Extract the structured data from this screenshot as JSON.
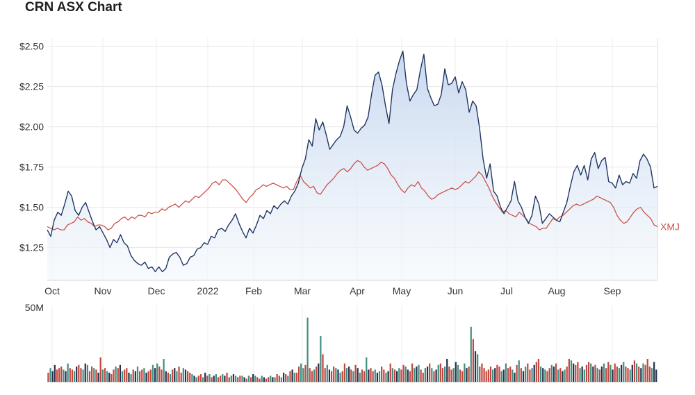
{
  "page": {
    "title": "CRN ASX Chart"
  },
  "chart_data": {
    "type": "line",
    "title": "CRN ASX Chart",
    "xlabel": "",
    "ylabel": "",
    "ylim": [
      1.05,
      2.55
    ],
    "y_ticks": [
      {
        "value": 1.25,
        "label": "$1.25"
      },
      {
        "value": 1.5,
        "label": "$1.50"
      },
      {
        "value": 1.75,
        "label": "$1.75"
      },
      {
        "value": 2.0,
        "label": "$2.00"
      },
      {
        "value": 2.25,
        "label": "$2.25"
      },
      {
        "value": 2.5,
        "label": "$2.50"
      }
    ],
    "x_ticks": [
      "Oct",
      "Nov",
      "Dec",
      "2022",
      "Feb",
      "Mar",
      "Apr",
      "May",
      "Jun",
      "Jul",
      "Aug",
      "Sep"
    ],
    "grid": true,
    "colors": {
      "crn": "#1f3563",
      "xmj": "#c9544c",
      "fill_top": "#c6d7ee",
      "fill_bottom": "#f3f7fc",
      "vol_up": "#3f8f80",
      "vol_down": "#c3473f",
      "vol_neutral": "#25324d"
    },
    "series": [
      {
        "name": "",
        "key": "crn",
        "values": [
          1.36,
          1.32,
          1.42,
          1.47,
          1.45,
          1.52,
          1.6,
          1.57,
          1.48,
          1.45,
          1.5,
          1.53,
          1.47,
          1.41,
          1.36,
          1.38,
          1.34,
          1.3,
          1.25,
          1.3,
          1.28,
          1.33,
          1.28,
          1.26,
          1.2,
          1.17,
          1.15,
          1.14,
          1.16,
          1.12,
          1.13,
          1.1,
          1.13,
          1.1,
          1.12,
          1.19,
          1.21,
          1.22,
          1.19,
          1.14,
          1.15,
          1.19,
          1.2,
          1.24,
          1.25,
          1.28,
          1.27,
          1.32,
          1.31,
          1.36,
          1.37,
          1.35,
          1.39,
          1.42,
          1.46,
          1.4,
          1.35,
          1.31,
          1.37,
          1.34,
          1.39,
          1.45,
          1.43,
          1.48,
          1.46,
          1.51,
          1.49,
          1.52,
          1.54,
          1.52,
          1.57,
          1.6,
          1.65,
          1.74,
          1.8,
          1.92,
          1.88,
          2.05,
          1.98,
          2.03,
          1.95,
          1.86,
          1.89,
          1.92,
          1.94,
          2.0,
          2.13,
          2.06,
          1.98,
          1.96,
          1.99,
          2.01,
          2.06,
          2.2,
          2.32,
          2.34,
          2.26,
          2.13,
          2.02,
          2.23,
          2.33,
          2.41,
          2.47,
          2.27,
          2.16,
          2.2,
          2.23,
          2.35,
          2.45,
          2.24,
          2.18,
          2.13,
          2.14,
          2.2,
          2.36,
          2.26,
          2.27,
          2.31,
          2.21,
          2.28,
          2.23,
          2.09,
          2.16,
          2.13,
          1.99,
          1.8,
          1.68,
          1.77,
          1.6,
          1.57,
          1.5,
          1.46,
          1.5,
          1.54,
          1.66,
          1.54,
          1.5,
          1.44,
          1.4,
          1.45,
          1.57,
          1.52,
          1.4,
          1.43,
          1.46,
          1.44,
          1.42,
          1.41,
          1.47,
          1.53,
          1.63,
          1.72,
          1.76,
          1.7,
          1.76,
          1.67,
          1.8,
          1.84,
          1.74,
          1.79,
          1.81,
          1.66,
          1.65,
          1.62,
          1.7,
          1.64,
          1.66,
          1.65,
          1.71,
          1.68,
          1.79,
          1.83,
          1.8,
          1.75,
          1.62,
          1.63
        ]
      },
      {
        "name": "XMJ",
        "key": "xmj",
        "values": [
          1.38,
          1.37,
          1.36,
          1.37,
          1.36,
          1.36,
          1.39,
          1.4,
          1.41,
          1.44,
          1.42,
          1.43,
          1.41,
          1.4,
          1.38,
          1.39,
          1.39,
          1.38,
          1.36,
          1.37,
          1.4,
          1.41,
          1.43,
          1.44,
          1.42,
          1.44,
          1.43,
          1.45,
          1.45,
          1.44,
          1.47,
          1.46,
          1.47,
          1.47,
          1.49,
          1.48,
          1.5,
          1.51,
          1.52,
          1.5,
          1.52,
          1.54,
          1.53,
          1.55,
          1.57,
          1.56,
          1.58,
          1.6,
          1.62,
          1.65,
          1.66,
          1.64,
          1.67,
          1.67,
          1.65,
          1.63,
          1.61,
          1.58,
          1.55,
          1.53,
          1.56,
          1.58,
          1.61,
          1.62,
          1.64,
          1.63,
          1.64,
          1.65,
          1.64,
          1.63,
          1.62,
          1.63,
          1.61,
          1.61,
          1.66,
          1.7,
          1.66,
          1.64,
          1.62,
          1.63,
          1.59,
          1.58,
          1.61,
          1.64,
          1.66,
          1.68,
          1.71,
          1.73,
          1.74,
          1.72,
          1.74,
          1.77,
          1.79,
          1.78,
          1.75,
          1.73,
          1.74,
          1.75,
          1.76,
          1.78,
          1.77,
          1.74,
          1.7,
          1.68,
          1.64,
          1.61,
          1.59,
          1.62,
          1.64,
          1.63,
          1.66,
          1.62,
          1.6,
          1.57,
          1.55,
          1.56,
          1.58,
          1.59,
          1.6,
          1.61,
          1.62,
          1.61,
          1.62,
          1.64,
          1.66,
          1.65,
          1.67,
          1.69,
          1.72,
          1.7,
          1.66,
          1.62,
          1.57,
          1.53,
          1.5,
          1.47,
          1.48,
          1.46,
          1.45,
          1.44,
          1.47,
          1.45,
          1.43,
          1.4,
          1.39,
          1.38,
          1.36,
          1.37,
          1.37,
          1.4,
          1.43,
          1.42,
          1.44,
          1.45,
          1.47,
          1.49,
          1.51,
          1.52,
          1.51,
          1.52,
          1.53,
          1.54,
          1.55,
          1.57,
          1.56,
          1.55,
          1.54,
          1.53,
          1.5,
          1.45,
          1.42,
          1.4,
          1.41,
          1.44,
          1.47,
          1.49,
          1.5,
          1.47,
          1.45,
          1.43,
          1.39,
          1.38
        ]
      }
    ],
    "volume": {
      "ymax": 50,
      "tick_label": "50M",
      "values": [
        6,
        9,
        7,
        11,
        8,
        9,
        10,
        8,
        7,
        12,
        9,
        8,
        7,
        10,
        11,
        9,
        8,
        12,
        11,
        7,
        10,
        9,
        8,
        6,
        16,
        8,
        9,
        7,
        6,
        5,
        8,
        10,
        9,
        11,
        7,
        8,
        9,
        6,
        5,
        8,
        7,
        10,
        7,
        8,
        9,
        6,
        7,
        8,
        11,
        9,
        12,
        10,
        8,
        15,
        7,
        6,
        5,
        8,
        9,
        7,
        10,
        6,
        9,
        8,
        7,
        6,
        5,
        4,
        3,
        4,
        5,
        3,
        6,
        4,
        5,
        3,
        4,
        5,
        3,
        4,
        5,
        4,
        6,
        3,
        4,
        5,
        4,
        3,
        4,
        4,
        3,
        2,
        4,
        3,
        5,
        4,
        3,
        2,
        4,
        3,
        2,
        3,
        4,
        3,
        3,
        5,
        4,
        3,
        6,
        5,
        4,
        7,
        8,
        6,
        6,
        10,
        12,
        9,
        11,
        42,
        9,
        7,
        8,
        10,
        12,
        30,
        18,
        9,
        11,
        8,
        7,
        10,
        9,
        8,
        6,
        7,
        12,
        9,
        10,
        8,
        7,
        11,
        9,
        6,
        8,
        7,
        16,
        8,
        9,
        7,
        8,
        6,
        7,
        10,
        8,
        6,
        7,
        12,
        9,
        8,
        7,
        9,
        8,
        11,
        10,
        8,
        7,
        12,
        9,
        10,
        11,
        8,
        6,
        9,
        10,
        12,
        9,
        7,
        8,
        11,
        12,
        9,
        10,
        15,
        10,
        8,
        9,
        13,
        11,
        8,
        7,
        12,
        9,
        10,
        36,
        28,
        20,
        18,
        10,
        12,
        9,
        7,
        8,
        10,
        8,
        9,
        11,
        10,
        7,
        8,
        12,
        9,
        10,
        8,
        6,
        11,
        14,
        9,
        7,
        10,
        12,
        8,
        9,
        11,
        13,
        15,
        10,
        9,
        8,
        7,
        9,
        11,
        10,
        12,
        8,
        9,
        7,
        8,
        10,
        15,
        14,
        12,
        11,
        13,
        9,
        10,
        8,
        11,
        13,
        12,
        10,
        11,
        9,
        8,
        10,
        12,
        9,
        13,
        11,
        8,
        12,
        10,
        9,
        11,
        13,
        10,
        9,
        8,
        11,
        14,
        12,
        10,
        9,
        12,
        11,
        15,
        10,
        9,
        13,
        8
      ],
      "colors": "rgbbrrrgbgrrgbrrgbgrrgrbrgrgbrrgrbgrrbgrbgrrgbrrgbgrrgbrgrbgrrgbrrgbgrrgbrgrbgrrgbrrgbgrrgbrgrbgrrgbrrgbgrrgbrgrbgrrggrgrrgrbgrrgbrrgbgrrgbrgrbgrrgbrrgbgrrgbrgrbgrrgbrrgbgrrgbrgrbgrrgbrrgbgrrgbrgrbgrrrrrrgbrrgbgrrgbrgrbgrrgbrrgbgrrgbrgrbgrrgbrrgbgrrgbrgrbgrrgbrrgbgrrgbrgrbgrr"
    }
  }
}
